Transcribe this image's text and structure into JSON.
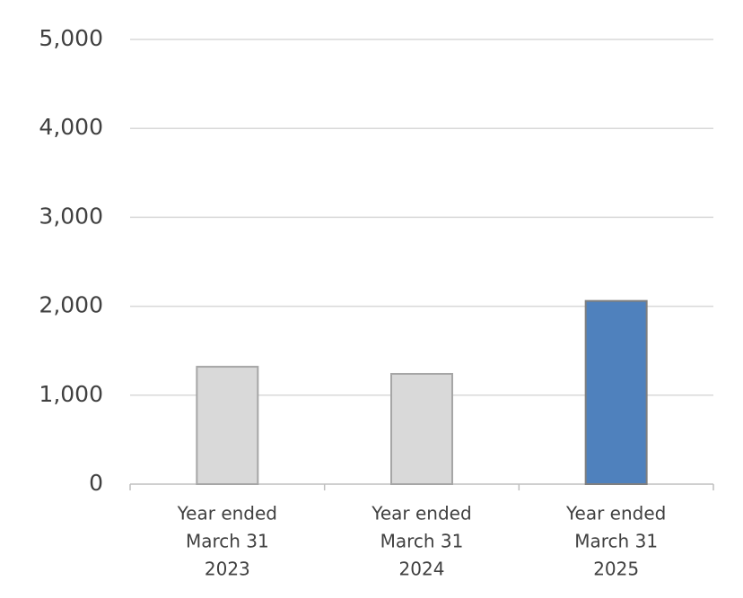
{
  "chart_data": {
    "type": "bar",
    "categories": [
      [
        "Year ended",
        "March 31",
        "2023"
      ],
      [
        "Year ended",
        "March 31",
        "2024"
      ],
      [
        "Year ended",
        "March 31",
        "2025"
      ]
    ],
    "values": [
      1320,
      1240,
      2060
    ],
    "colors": [
      "#d9d9d9",
      "#d9d9d9",
      "#4f81bd"
    ],
    "ylim": [
      0,
      5000
    ],
    "yticks": [
      0,
      {
        "value": 1000,
        "label": "1,000"
      },
      {
        "value": 2000,
        "label": "2,000"
      },
      {
        "value": 3000,
        "label": "3,000"
      },
      {
        "value": 4000,
        "label": "4,000"
      },
      {
        "value": 5000,
        "label": "5,000"
      }
    ],
    "grid": true
  }
}
